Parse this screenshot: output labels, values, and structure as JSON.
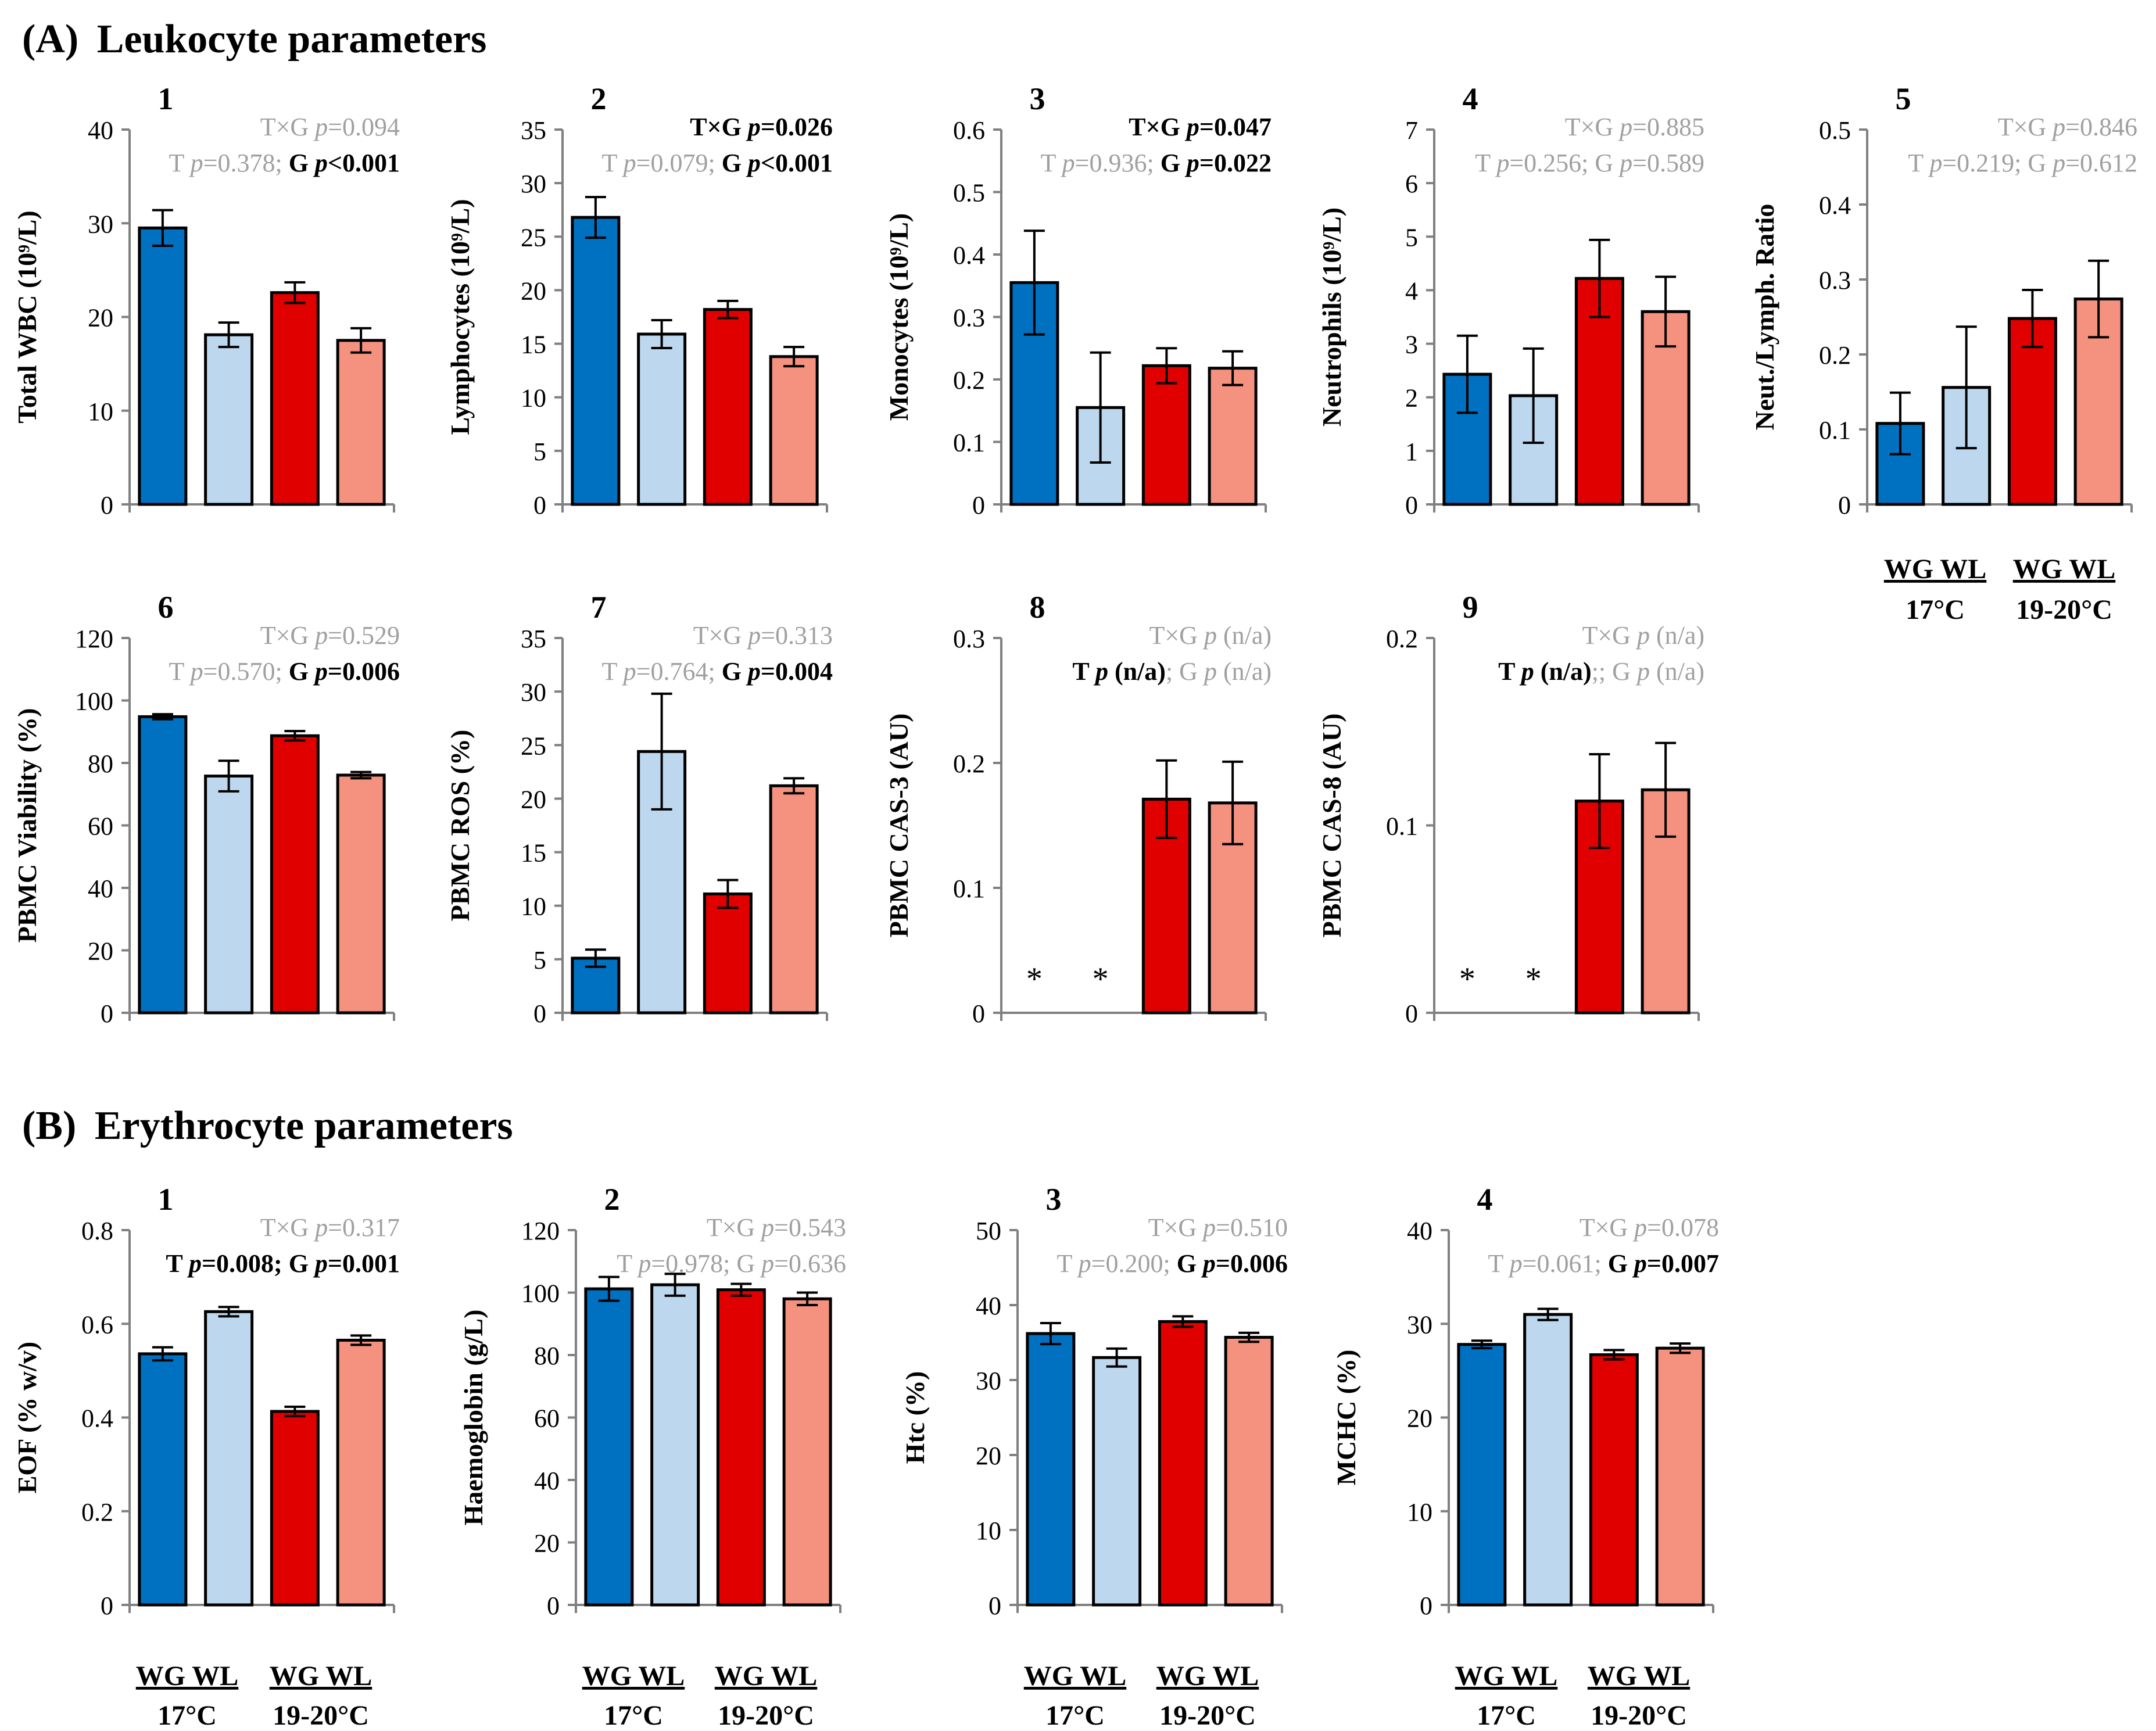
{
  "figure": {
    "sectionA": {
      "letter": "(A)",
      "title": "Leukocyte parameters"
    },
    "sectionB": {
      "letter": "(B)",
      "title": "Erythrocyte parameters"
    },
    "legend": {
      "group1": "WG WL",
      "temp1": "17°C",
      "group2": "WG WL",
      "temp2": "19-20°C"
    }
  },
  "colors": {
    "WG_17": "#0070c0",
    "WL_17": "#bdd7ee",
    "WG_1920": "#e00000",
    "WL_1920": "#f4917f",
    "sig": "#000000",
    "nonsig": "#a0a0a0"
  },
  "chart_data": [
    {
      "panel": "A1",
      "type": "bar",
      "number": "1",
      "ylabel": "Total WBC (10⁹/L)",
      "ylim": [
        0,
        40
      ],
      "ticks": [
        "0",
        "10",
        "20",
        "30",
        "40"
      ],
      "categories": [
        "WG 17°C",
        "WL 17°C",
        "WG 19-20°C",
        "WL 19-20°C"
      ],
      "values": [
        29.5,
        18.1,
        22.6,
        17.5
      ],
      "errors": [
        1.9,
        1.3,
        1.1,
        1.3
      ],
      "stats_line1": [
        {
          "t": "T×G ",
          "c": "nonsig"
        },
        {
          "t": "p",
          "c": "nonsig",
          "i": true
        },
        {
          "t": "=0.094",
          "c": "nonsig"
        }
      ],
      "stats_line2": [
        {
          "t": "T ",
          "c": "nonsig"
        },
        {
          "t": "p",
          "c": "nonsig",
          "i": true
        },
        {
          "t": "=0.378; ",
          "c": "nonsig"
        },
        {
          "t": "G ",
          "c": "sig",
          "b": true
        },
        {
          "t": "p",
          "c": "sig",
          "b": true,
          "i": true
        },
        {
          "t": "<0.001",
          "c": "sig",
          "b": true
        }
      ]
    },
    {
      "panel": "A2",
      "type": "bar",
      "number": "2",
      "ylabel": "Lymphocytes (10⁹/L)",
      "ylim": [
        0,
        35
      ],
      "ticks": [
        "0",
        "5",
        "10",
        "15",
        "20",
        "25",
        "30",
        "35"
      ],
      "categories": [
        "WG 17°C",
        "WL 17°C",
        "WG 19-20°C",
        "WL 19-20°C"
      ],
      "values": [
        26.8,
        15.9,
        18.2,
        13.8
      ],
      "errors": [
        1.9,
        1.3,
        0.8,
        0.9
      ],
      "stats_line1": [
        {
          "t": "T×G ",
          "c": "sig",
          "b": true
        },
        {
          "t": "p",
          "c": "sig",
          "b": true,
          "i": true
        },
        {
          "t": "=0.026",
          "c": "sig",
          "b": true
        }
      ],
      "stats_line2": [
        {
          "t": "T ",
          "c": "nonsig"
        },
        {
          "t": "p",
          "c": "nonsig",
          "i": true
        },
        {
          "t": "=0.079; ",
          "c": "nonsig"
        },
        {
          "t": "G ",
          "c": "sig",
          "b": true
        },
        {
          "t": "p",
          "c": "sig",
          "b": true,
          "i": true
        },
        {
          "t": "<0.001",
          "c": "sig",
          "b": true
        }
      ]
    },
    {
      "panel": "A3",
      "type": "bar",
      "number": "3",
      "ylabel": "Monocytes (10⁹/L)",
      "ylim": [
        0,
        0.6
      ],
      "ticks": [
        "0",
        "0.1",
        "0.2",
        "0.3",
        "0.4",
        "0.5",
        "0.6"
      ],
      "categories": [
        "WG 17°C",
        "WL 17°C",
        "WG 19-20°C",
        "WL 19-20°C"
      ],
      "values": [
        0.355,
        0.155,
        0.222,
        0.218
      ],
      "errors": [
        0.083,
        0.088,
        0.028,
        0.027
      ],
      "stats_line1": [
        {
          "t": "T×G ",
          "c": "sig",
          "b": true
        },
        {
          "t": "p",
          "c": "sig",
          "b": true,
          "i": true
        },
        {
          "t": "=0.047",
          "c": "sig",
          "b": true
        }
      ],
      "stats_line2": [
        {
          "t": "T ",
          "c": "nonsig"
        },
        {
          "t": "p",
          "c": "nonsig",
          "i": true
        },
        {
          "t": "=0.936; ",
          "c": "nonsig"
        },
        {
          "t": "G ",
          "c": "sig",
          "b": true
        },
        {
          "t": "p",
          "c": "sig",
          "b": true,
          "i": true
        },
        {
          "t": "=0.022",
          "c": "sig",
          "b": true
        }
      ]
    },
    {
      "panel": "A4",
      "type": "bar",
      "number": "4",
      "ylabel": "Neutrophils (10⁹/L)",
      "ylim": [
        0,
        7
      ],
      "ticks": [
        "0",
        "1",
        "2",
        "3",
        "4",
        "5",
        "6",
        "7"
      ],
      "categories": [
        "WG 17°C",
        "WL 17°C",
        "WG 19-20°C",
        "WL 19-20°C"
      ],
      "values": [
        2.43,
        2.03,
        4.22,
        3.6
      ],
      "errors": [
        0.72,
        0.88,
        0.72,
        0.65
      ],
      "stats_line1": [
        {
          "t": "T×G ",
          "c": "nonsig"
        },
        {
          "t": "p",
          "c": "nonsig",
          "i": true
        },
        {
          "t": "=0.885",
          "c": "nonsig"
        }
      ],
      "stats_line2": [
        {
          "t": "T ",
          "c": "nonsig"
        },
        {
          "t": "p",
          "c": "nonsig",
          "i": true
        },
        {
          "t": "=0.256; G ",
          "c": "nonsig"
        },
        {
          "t": "p",
          "c": "nonsig",
          "i": true
        },
        {
          "t": "=0.589",
          "c": "nonsig"
        }
      ]
    },
    {
      "panel": "A5",
      "type": "bar",
      "number": "5",
      "ylabel": "Neut./Lymph. Ratio",
      "ylim": [
        0,
        0.5
      ],
      "ticks": [
        "0",
        "0.1",
        "0.2",
        "0.3",
        "0.4",
        "0.5"
      ],
      "categories": [
        "WG 17°C",
        "WL 17°C",
        "WG 19-20°C",
        "WL 19-20°C"
      ],
      "values": [
        0.108,
        0.156,
        0.248,
        0.274
      ],
      "errors": [
        0.041,
        0.081,
        0.038,
        0.051
      ],
      "stats_line1": [
        {
          "t": "T×G ",
          "c": "nonsig"
        },
        {
          "t": "p",
          "c": "nonsig",
          "i": true
        },
        {
          "t": "=0.846",
          "c": "nonsig"
        }
      ],
      "stats_line2": [
        {
          "t": "T ",
          "c": "nonsig"
        },
        {
          "t": "p",
          "c": "nonsig",
          "i": true
        },
        {
          "t": "=0.219; G ",
          "c": "nonsig"
        },
        {
          "t": "p",
          "c": "nonsig",
          "i": true
        },
        {
          "t": "=0.612",
          "c": "nonsig"
        }
      ]
    },
    {
      "panel": "A6",
      "type": "bar",
      "number": "6",
      "ylabel": "PBMC Viability (%)",
      "ylim": [
        0,
        120
      ],
      "ticks": [
        "0",
        "20",
        "40",
        "60",
        "80",
        "100",
        "120"
      ],
      "categories": [
        "WG 17°C",
        "WL 17°C",
        "WG 19-20°C",
        "WL 19-20°C"
      ],
      "values": [
        94.8,
        75.8,
        88.7,
        76.1
      ],
      "errors": [
        0.8,
        4.9,
        1.5,
        1.0
      ],
      "stats_line1": [
        {
          "t": "T×G ",
          "c": "nonsig"
        },
        {
          "t": "p",
          "c": "nonsig",
          "i": true
        },
        {
          "t": "=0.529",
          "c": "nonsig"
        }
      ],
      "stats_line2": [
        {
          "t": "T ",
          "c": "nonsig"
        },
        {
          "t": "p",
          "c": "nonsig",
          "i": true
        },
        {
          "t": "=0.570; ",
          "c": "nonsig"
        },
        {
          "t": "G ",
          "c": "sig",
          "b": true
        },
        {
          "t": "p",
          "c": "sig",
          "b": true,
          "i": true
        },
        {
          "t": "=0.006",
          "c": "sig",
          "b": true
        }
      ]
    },
    {
      "panel": "A7",
      "type": "bar",
      "number": "7",
      "ylabel": "PBMC ROS (%)",
      "ylim": [
        0,
        35
      ],
      "ticks": [
        "0",
        "5",
        "10",
        "15",
        "20",
        "25",
        "30",
        "35"
      ],
      "categories": [
        "WG 17°C",
        "WL 17°C",
        "WG 19-20°C",
        "WL 19-20°C"
      ],
      "values": [
        5.1,
        24.4,
        11.1,
        21.2
      ],
      "errors": [
        0.8,
        5.4,
        1.3,
        0.7
      ],
      "stats_line1": [
        {
          "t": "T×G ",
          "c": "nonsig"
        },
        {
          "t": "p",
          "c": "nonsig",
          "i": true
        },
        {
          "t": "=0.313",
          "c": "nonsig"
        }
      ],
      "stats_line2": [
        {
          "t": "T ",
          "c": "nonsig"
        },
        {
          "t": "p",
          "c": "nonsig",
          "i": true
        },
        {
          "t": "=0.764; ",
          "c": "nonsig"
        },
        {
          "t": "G ",
          "c": "sig",
          "b": true
        },
        {
          "t": "p",
          "c": "sig",
          "b": true,
          "i": true
        },
        {
          "t": "=0.004",
          "c": "sig",
          "b": true
        }
      ]
    },
    {
      "panel": "A8",
      "type": "bar",
      "number": "8",
      "ylabel": "PBMC CAS-3 (AU)",
      "ylim": [
        0,
        0.3
      ],
      "ticks": [
        "0",
        "0.1",
        "0.2",
        "0.3"
      ],
      "categories": [
        "WG 17°C",
        "WL 17°C",
        "WG 19-20°C",
        "WL 19-20°C"
      ],
      "values": [
        null,
        null,
        0.171,
        0.168
      ],
      "errors": [
        null,
        null,
        0.031,
        0.033
      ],
      "missing_marker": "*",
      "stats_line1": [
        {
          "t": "T×G ",
          "c": "nonsig"
        },
        {
          "t": "p",
          "c": "nonsig",
          "i": true
        },
        {
          "t": " (n/a)",
          "c": "nonsig"
        }
      ],
      "stats_line2": [
        {
          "t": "T ",
          "c": "sig",
          "b": true
        },
        {
          "t": "p",
          "c": "sig",
          "b": true,
          "i": true
        },
        {
          "t": " (n/a)",
          "c": "sig",
          "b": true
        },
        {
          "t": "; G ",
          "c": "nonsig"
        },
        {
          "t": "p",
          "c": "nonsig",
          "i": true
        },
        {
          "t": " (n/a)",
          "c": "nonsig"
        }
      ]
    },
    {
      "panel": "A9",
      "type": "bar",
      "number": "9",
      "ylabel": "PBMC CAS-8 (AU)",
      "ylim": [
        0,
        0.2
      ],
      "ticks": [
        "0",
        "0.1",
        "0.2"
      ],
      "categories": [
        "WG 17°C",
        "WL 17°C",
        "WG 19-20°C",
        "WL 19-20°C"
      ],
      "values": [
        null,
        null,
        0.113,
        0.119
      ],
      "errors": [
        null,
        null,
        0.025,
        0.025
      ],
      "missing_marker": "*",
      "stats_line1": [
        {
          "t": "T×G ",
          "c": "nonsig"
        },
        {
          "t": "p",
          "c": "nonsig",
          "i": true
        },
        {
          "t": " (n/a)",
          "c": "nonsig"
        }
      ],
      "stats_line2": [
        {
          "t": "T ",
          "c": "sig",
          "b": true
        },
        {
          "t": "p",
          "c": "sig",
          "b": true,
          "i": true
        },
        {
          "t": " (n/a)",
          "c": "sig",
          "b": true
        },
        {
          "t": ";; G ",
          "c": "nonsig"
        },
        {
          "t": "p",
          "c": "nonsig",
          "i": true
        },
        {
          "t": " (n/a)",
          "c": "nonsig"
        }
      ]
    },
    {
      "panel": "B1",
      "type": "bar",
      "number": "1",
      "ylabel": "EOF (% w/v)",
      "ylim": [
        0,
        0.8
      ],
      "ticks": [
        "0",
        "0.2",
        "0.4",
        "0.6",
        "0.8"
      ],
      "categories": [
        "WG 17°C",
        "WL 17°C",
        "WG 19-20°C",
        "WL 19-20°C"
      ],
      "values": [
        0.536,
        0.626,
        0.413,
        0.565
      ],
      "errors": [
        0.014,
        0.01,
        0.01,
        0.01
      ],
      "stats_line1": [
        {
          "t": "T×G ",
          "c": "nonsig"
        },
        {
          "t": "p",
          "c": "nonsig",
          "i": true
        },
        {
          "t": "=0.317",
          "c": "nonsig"
        }
      ],
      "stats_line2": [
        {
          "t": "T ",
          "c": "sig",
          "b": true
        },
        {
          "t": "p",
          "c": "sig",
          "b": true,
          "i": true
        },
        {
          "t": "=0.008; G ",
          "c": "sig",
          "b": true
        },
        {
          "t": "p",
          "c": "sig",
          "b": true,
          "i": true
        },
        {
          "t": "=0.001",
          "c": "sig",
          "b": true
        }
      ]
    },
    {
      "panel": "B2",
      "type": "bar",
      "number": "2",
      "ylabel": "Haemoglobin (g/L)",
      "ylim": [
        0,
        120
      ],
      "ticks": [
        "0",
        "20",
        "40",
        "60",
        "80",
        "100",
        "120"
      ],
      "categories": [
        "WG 17°C",
        "WL 17°C",
        "WG 19-20°C",
        "WL 19-20°C"
      ],
      "values": [
        101.2,
        102.5,
        100.9,
        98.0
      ],
      "errors": [
        3.8,
        3.5,
        1.9,
        2.0
      ],
      "stats_line1": [
        {
          "t": "T×G ",
          "c": "nonsig"
        },
        {
          "t": "p",
          "c": "nonsig",
          "i": true
        },
        {
          "t": "=0.543",
          "c": "nonsig"
        }
      ],
      "stats_line2": [
        {
          "t": "T ",
          "c": "nonsig"
        },
        {
          "t": "p",
          "c": "nonsig",
          "i": true
        },
        {
          "t": "=0.978; G ",
          "c": "nonsig"
        },
        {
          "t": "p",
          "c": "nonsig",
          "i": true
        },
        {
          "t": "=0.636",
          "c": "nonsig"
        }
      ]
    },
    {
      "panel": "B3",
      "type": "bar",
      "number": "3",
      "ylabel": "Htc (%)",
      "ylim": [
        0,
        50
      ],
      "ticks": [
        "0",
        "10",
        "20",
        "30",
        "40",
        "50"
      ],
      "categories": [
        "WG 17°C",
        "WL 17°C",
        "WG 19-20°C",
        "WL 19-20°C"
      ],
      "values": [
        36.2,
        33.0,
        37.8,
        35.7
      ],
      "errors": [
        1.4,
        1.2,
        0.7,
        0.6
      ],
      "stats_line1": [
        {
          "t": "T×G ",
          "c": "nonsig"
        },
        {
          "t": "p",
          "c": "nonsig",
          "i": true
        },
        {
          "t": "=0.510",
          "c": "nonsig"
        }
      ],
      "stats_line2": [
        {
          "t": "T ",
          "c": "nonsig"
        },
        {
          "t": "p",
          "c": "nonsig",
          "i": true
        },
        {
          "t": "=0.200; ",
          "c": "nonsig"
        },
        {
          "t": "G ",
          "c": "sig",
          "b": true
        },
        {
          "t": "p",
          "c": "sig",
          "b": true,
          "i": true
        },
        {
          "t": "=0.006",
          "c": "sig",
          "b": true
        }
      ]
    },
    {
      "panel": "B4",
      "type": "bar",
      "number": "4",
      "ylabel": "MCHC (%)",
      "ylim": [
        0,
        40
      ],
      "ticks": [
        "0",
        "10",
        "20",
        "30",
        "40"
      ],
      "categories": [
        "WG 17°C",
        "WL 17°C",
        "WG 19-20°C",
        "WL 19-20°C"
      ],
      "values": [
        27.8,
        31.0,
        26.7,
        27.4
      ],
      "errors": [
        0.4,
        0.6,
        0.5,
        0.5
      ],
      "stats_line1": [
        {
          "t": "T×G ",
          "c": "nonsig"
        },
        {
          "t": "p",
          "c": "nonsig",
          "i": true
        },
        {
          "t": "=0.078",
          "c": "nonsig"
        }
      ],
      "stats_line2": [
        {
          "t": "T ",
          "c": "nonsig"
        },
        {
          "t": "p",
          "c": "nonsig",
          "i": true
        },
        {
          "t": "=0.061; ",
          "c": "nonsig"
        },
        {
          "t": "G ",
          "c": "sig",
          "b": true
        },
        {
          "t": "p",
          "c": "sig",
          "b": true,
          "i": true
        },
        {
          "t": "=0.007",
          "c": "sig",
          "b": true
        }
      ]
    }
  ]
}
